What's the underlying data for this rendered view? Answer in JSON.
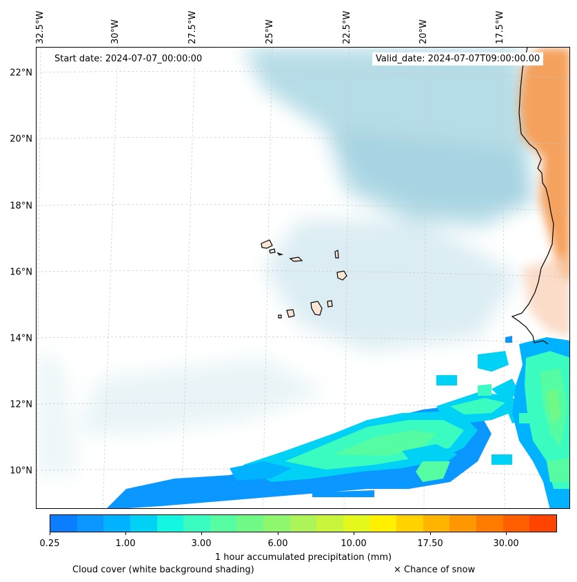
{
  "map": {
    "start_date_text": "Start date: 2024-07-07_00:00:00",
    "valid_date_text": "Valid_date: 2024-07-07T09:00:00.00",
    "lon_labels": [
      "32.5°W",
      "30°W",
      "27.5°W",
      "25°W",
      "22.5°W",
      "20°W",
      "17.5°W"
    ],
    "lat_labels": [
      "22°N",
      "20°N",
      "18°N",
      "16°N",
      "14°N",
      "12°N",
      "10°N"
    ],
    "extent": {
      "lon_min": -32.7,
      "lon_max": -15.6,
      "lat_min": 8.8,
      "lat_max": 22.8
    },
    "gridlines": "dashed light gray",
    "colors": {
      "cloud_cover": "#a9d6e3",
      "land_temperature": "#f4a15d",
      "coastline": "#000000",
      "island_fill": "#fbe5d4"
    }
  },
  "colorbar": {
    "label": "1 hour accumulated precipitation (mm)",
    "tick_labels": [
      "0.25",
      "1.00",
      "3.00",
      "6.00",
      "10.00",
      "17.50",
      "30.00"
    ],
    "colors": [
      "#0a7eff",
      "#0a97ff",
      "#00b2ff",
      "#00d1f5",
      "#13f7e1",
      "#3afcc0",
      "#55fca2",
      "#71f986",
      "#8ff76e",
      "#acf457",
      "#c9f43c",
      "#e5f81c",
      "#fff000",
      "#ffd200",
      "#ffb400",
      "#ff9800",
      "#ff7b00",
      "#ff5f00",
      "#ff4300"
    ]
  },
  "legend": {
    "cloud_cover_text": "Cloud cover (white background shading)",
    "snow_text": "× Chance of snow"
  }
}
